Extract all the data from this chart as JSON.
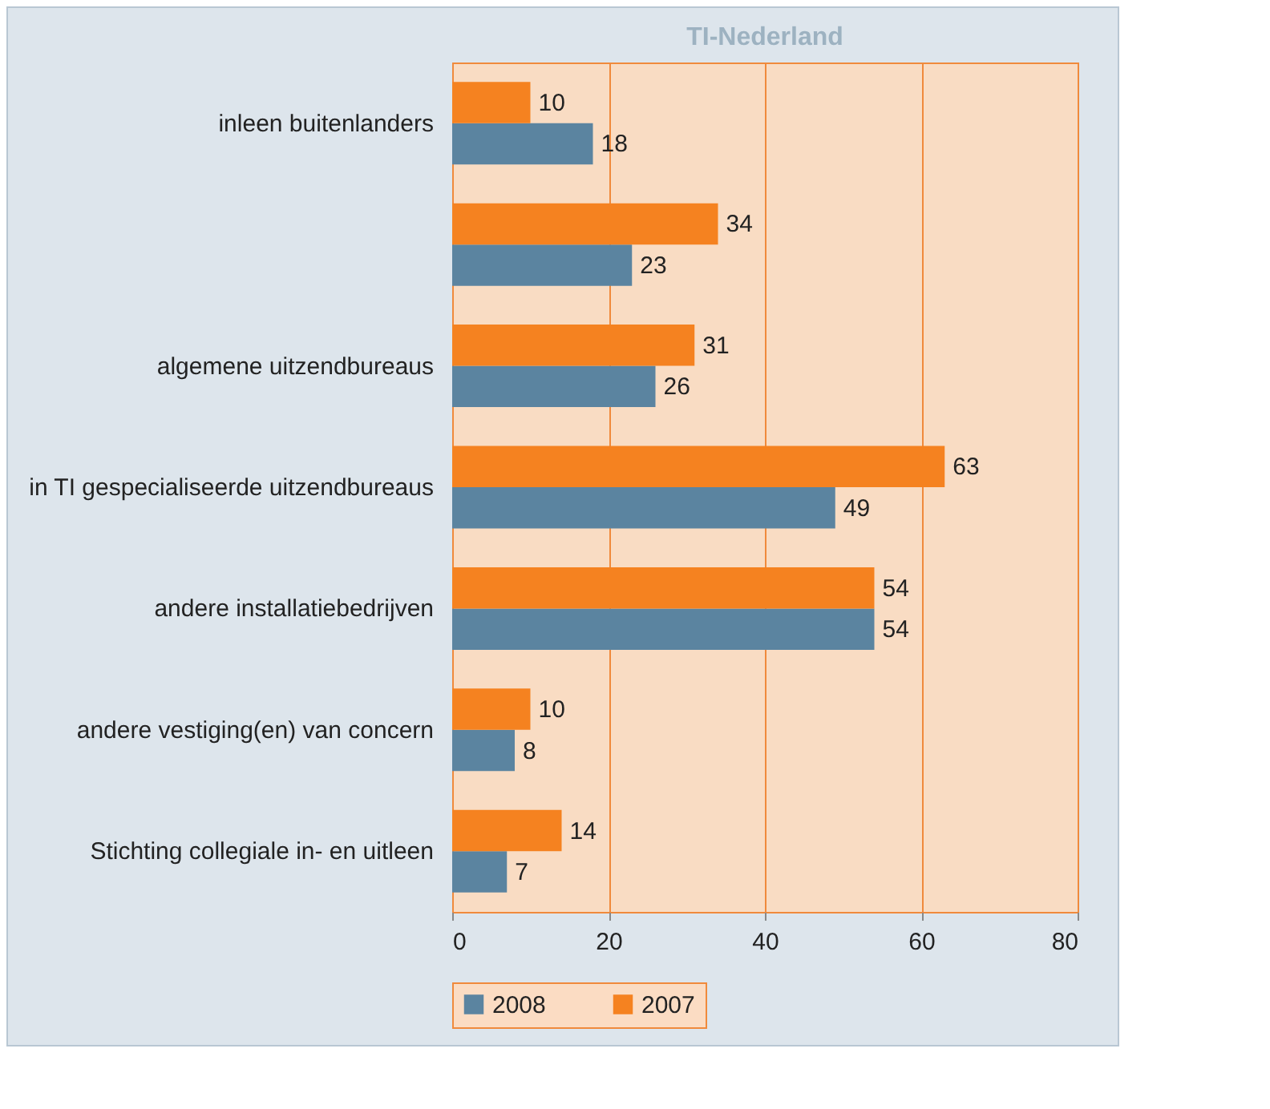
{
  "chart_data": {
    "type": "bar",
    "orientation": "horizontal",
    "title": "TI-Nederland",
    "categories": [
      "inleen buitenlanders",
      null,
      "algemene  uitzendbureaus",
      "in TI gespecialiseerde uitzendbureaus",
      "andere installatiebedrijven",
      "andere vestiging(en) van concern",
      "Stichting collegiale in- en uitleen"
    ],
    "series": [
      {
        "name": "2008",
        "color": "#5b84a0",
        "values": [
          18,
          23,
          26,
          49,
          54,
          8,
          7
        ]
      },
      {
        "name": "2007",
        "color": "#f58220",
        "values": [
          10,
          34,
          31,
          63,
          54,
          10,
          14
        ]
      }
    ],
    "xlim": [
      0,
      80
    ],
    "xticks": [
      0,
      20,
      40,
      60,
      80
    ],
    "grid": "x",
    "legend": "bottom",
    "data_labels": true
  }
}
